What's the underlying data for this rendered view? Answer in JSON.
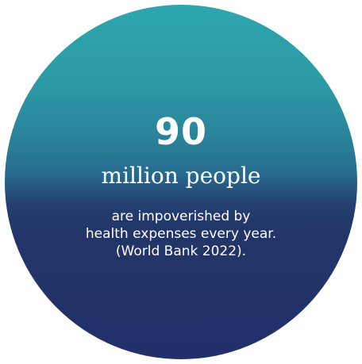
{
  "stat": {
    "number": "90",
    "unit": "million people",
    "description_lines": [
      "are impoverished by",
      "health expenses every year.",
      "(World Bank 2022)."
    ]
  },
  "colors": {
    "gradient_top": "#2ea6ad",
    "gradient_bottom": "#22306a",
    "text": "#ffffff"
  }
}
